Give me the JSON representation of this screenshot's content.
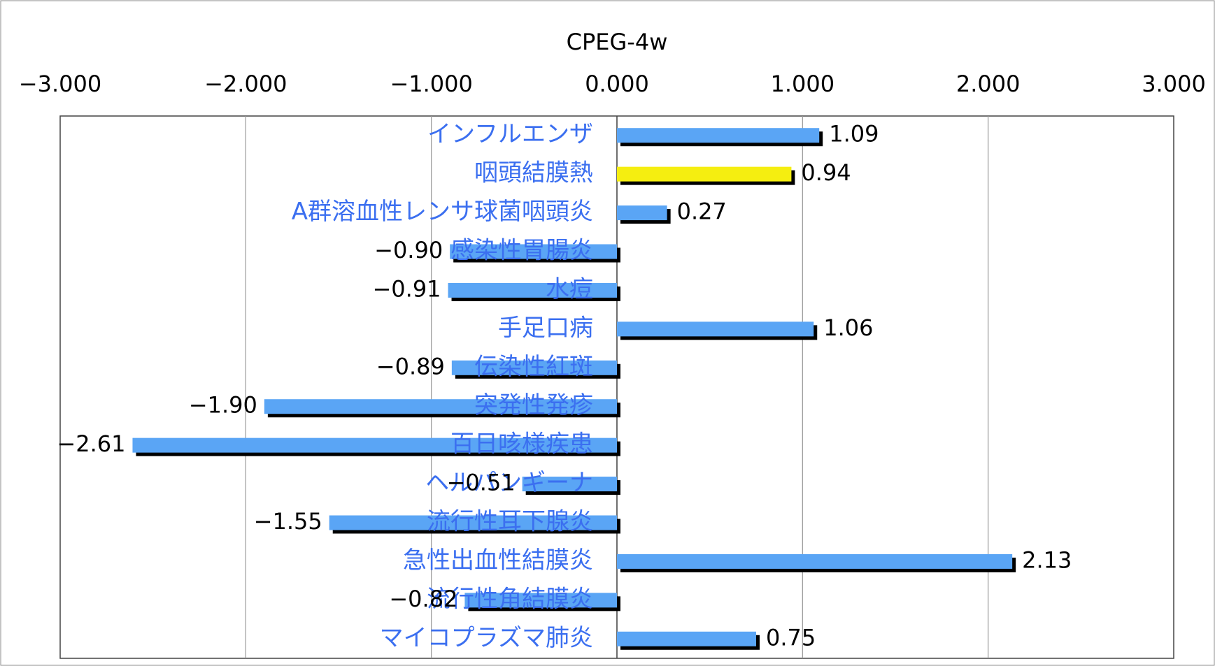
{
  "chart_data": {
    "type": "barh",
    "title": "CPEG-4w",
    "categories": [
      "インフルエンザ",
      "咽頭結膜熱",
      "A群溶血性レンサ球菌咽頭炎",
      "感染性胃腸炎",
      "水痘",
      "手足口病",
      "伝染性紅斑",
      "突発性発疹",
      "百日咳様疾患",
      "ヘルパンギーナ",
      "流行性耳下腺炎",
      "急性出血性結膜炎",
      "流行性角結膜炎",
      "マイコプラズマ肺炎"
    ],
    "values": [
      1.09,
      0.94,
      0.27,
      -0.9,
      -0.91,
      1.06,
      -0.89,
      -1.9,
      -2.61,
      -0.51,
      -1.55,
      2.13,
      -0.82,
      0.75
    ],
    "value_labels": [
      "1.09",
      "0.94",
      "0.27",
      "−0.90",
      "−0.91",
      "1.06",
      "−0.89",
      "−1.90",
      "−2.61",
      "−0.51",
      "−1.55",
      "2.13",
      "−0.82",
      "0.75"
    ],
    "colors": [
      "#5aa5f5",
      "#f5ee10",
      "#5aa5f5",
      "#5aa5f5",
      "#5aa5f5",
      "#5aa5f5",
      "#5aa5f5",
      "#5aa5f5",
      "#5aa5f5",
      "#5aa5f5",
      "#5aa5f5",
      "#5aa5f5",
      "#5aa5f5",
      "#5aa5f5"
    ],
    "xlim": [
      -3,
      3
    ],
    "xticks": [
      {
        "value": -3,
        "label": "−3.000"
      },
      {
        "value": -2,
        "label": "−2.000"
      },
      {
        "value": -1,
        "label": "−1.000"
      },
      {
        "value": 0,
        "label": "0.000"
      },
      {
        "value": 1,
        "label": "1.000"
      },
      {
        "value": 2,
        "label": "2.000"
      },
      {
        "value": 3,
        "label": "3.000"
      }
    ],
    "grid": true
  }
}
